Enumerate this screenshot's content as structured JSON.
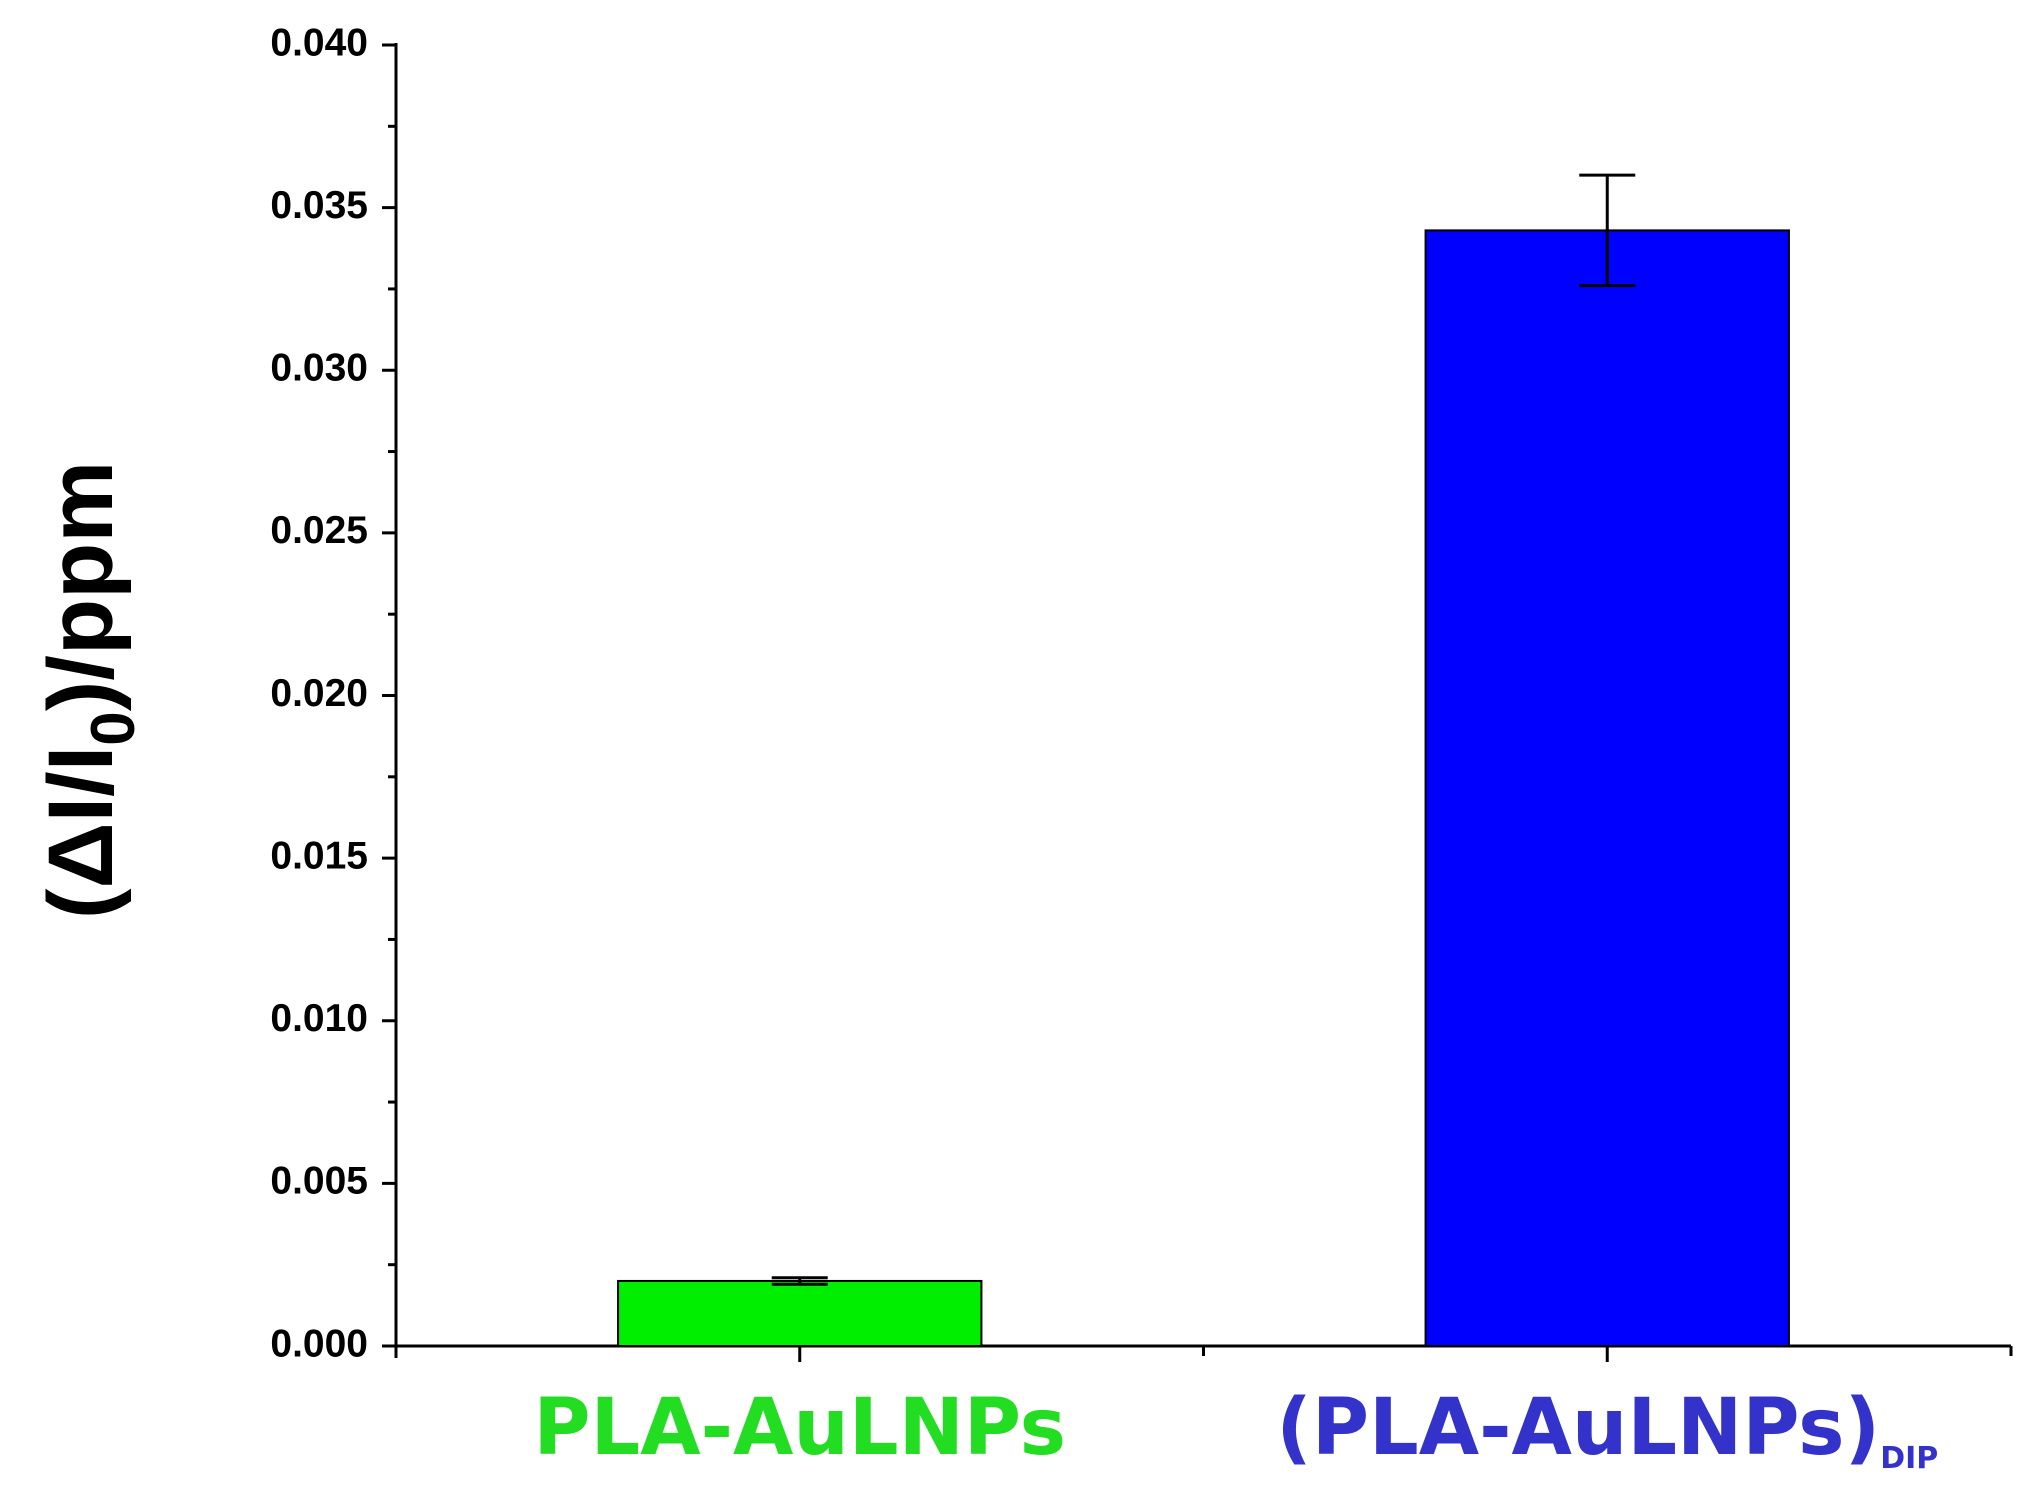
{
  "chart_data": {
    "type": "bar",
    "y_label": {
      "text": "(ΔI/I",
      "subscript": "0",
      "suffix": ")/ppm"
    },
    "categories": [
      {
        "text": "PLA-AuLNPs"
      },
      {
        "text": "(PLA-AuLNPs)",
        "subscript": "DIP"
      }
    ],
    "values": [
      0.002,
      0.0343
    ],
    "errors": [
      0.0001,
      0.0017
    ],
    "colors": [
      "#00ee00",
      "#0000ff"
    ],
    "label_colors": [
      "#22dd22",
      "#3333cc"
    ],
    "ylim": [
      0,
      0.04
    ],
    "yticks": [
      {
        "value": 0,
        "label": "0.000"
      },
      {
        "value": 0.005,
        "label": "0.005"
      },
      {
        "value": 0.01,
        "label": "0.010"
      },
      {
        "value": 0.015,
        "label": "0.015"
      },
      {
        "value": 0.02,
        "label": "0.020"
      },
      {
        "value": 0.025,
        "label": "0.025"
      },
      {
        "value": 0.03,
        "label": "0.030"
      },
      {
        "value": 0.035,
        "label": "0.035"
      },
      {
        "value": 0.04,
        "label": "0.040"
      }
    ],
    "yminor": [
      0.0025,
      0.0075,
      0.0125,
      0.0175,
      0.0225,
      0.0275,
      0.0325,
      0.0375
    ]
  }
}
